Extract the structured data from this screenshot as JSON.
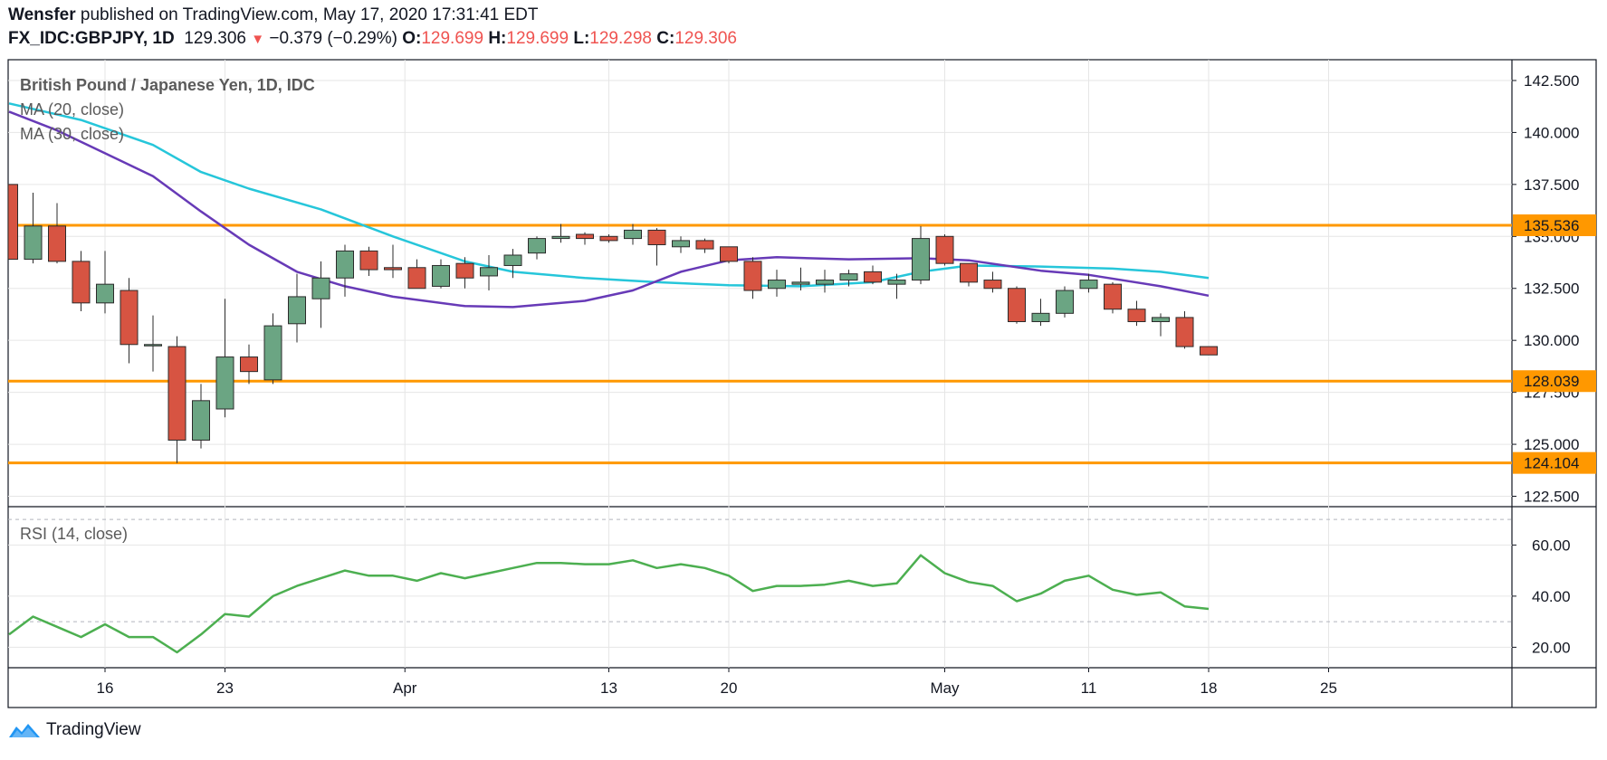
{
  "header": {
    "publisher": "Wensfer",
    "published_text": "published on TradingView.com, May 17, 2020 17:31:41 EDT",
    "symbol": "FX_IDC:GBPJPY, 1D",
    "last": "129.306",
    "change_arrow": "▼",
    "change": "−0.379 (−0.29%)",
    "o_label": "O:",
    "o": "129.699",
    "h_label": "H:",
    "h": "129.699",
    "l_label": "L:",
    "l": "129.298",
    "c_label": "C:",
    "c": "129.306"
  },
  "footer": {
    "brand": "TradingView"
  },
  "chart_data": {
    "type": "candlestick",
    "title": "British Pound / Japanese Yen, 1D, IDC",
    "legend": [
      "MA (20, close)",
      "MA (30, close)"
    ],
    "price_axis": {
      "ticks": [
        "142.500",
        "140.000",
        "137.500",
        "135.000",
        "132.500",
        "130.000",
        "127.500",
        "125.000",
        "122.500"
      ],
      "ylim": [
        122.0,
        143.5
      ]
    },
    "horizontal_levels": [
      "135.536",
      "128.039",
      "124.104"
    ],
    "x_ticks": [
      {
        "label": "16",
        "index": 4
      },
      {
        "label": "23",
        "index": 9
      },
      {
        "label": "Apr",
        "index": 16.5
      },
      {
        "label": "13",
        "index": 25
      },
      {
        "label": "20",
        "index": 30
      },
      {
        "label": "May",
        "index": 39
      },
      {
        "label": "11",
        "index": 45
      },
      {
        "label": "18",
        "index": 50
      },
      {
        "label": "25",
        "index": 55
      }
    ],
    "candles": [
      {
        "o": 137.5,
        "h": 137.5,
        "l": 133.9,
        "c": 133.9
      },
      {
        "o": 133.9,
        "h": 137.1,
        "l": 133.7,
        "c": 135.5
      },
      {
        "o": 135.5,
        "h": 136.6,
        "l": 133.7,
        "c": 133.8
      },
      {
        "o": 133.8,
        "h": 134.3,
        "l": 131.4,
        "c": 131.8
      },
      {
        "o": 131.8,
        "h": 134.3,
        "l": 131.3,
        "c": 132.7
      },
      {
        "o": 132.4,
        "h": 133.0,
        "l": 128.9,
        "c": 129.8
      },
      {
        "o": 129.8,
        "h": 131.2,
        "l": 128.5,
        "c": 129.8
      },
      {
        "o": 129.7,
        "h": 130.2,
        "l": 124.1,
        "c": 125.2
      },
      {
        "o": 125.2,
        "h": 127.9,
        "l": 124.8,
        "c": 127.1
      },
      {
        "o": 126.7,
        "h": 132.0,
        "l": 126.3,
        "c": 129.2
      },
      {
        "o": 129.2,
        "h": 129.8,
        "l": 127.9,
        "c": 128.5
      },
      {
        "o": 128.1,
        "h": 131.3,
        "l": 127.9,
        "c": 130.7
      },
      {
        "o": 130.8,
        "h": 133.2,
        "l": 129.9,
        "c": 132.1
      },
      {
        "o": 132.0,
        "h": 133.8,
        "l": 130.6,
        "c": 133.0
      },
      {
        "o": 133.0,
        "h": 134.6,
        "l": 132.1,
        "c": 134.3
      },
      {
        "o": 134.3,
        "h": 134.5,
        "l": 133.1,
        "c": 133.4
      },
      {
        "o": 133.5,
        "h": 134.6,
        "l": 133.0,
        "c": 133.4
      },
      {
        "o": 133.5,
        "h": 133.9,
        "l": 132.5,
        "c": 132.5
      },
      {
        "o": 132.6,
        "h": 133.9,
        "l": 132.5,
        "c": 133.6
      },
      {
        "o": 133.7,
        "h": 134.0,
        "l": 132.5,
        "c": 133.0
      },
      {
        "o": 133.1,
        "h": 134.1,
        "l": 132.4,
        "c": 133.5
      },
      {
        "o": 133.6,
        "h": 134.4,
        "l": 133.0,
        "c": 134.1
      },
      {
        "o": 134.2,
        "h": 135.0,
        "l": 133.9,
        "c": 134.9
      },
      {
        "o": 134.9,
        "h": 135.6,
        "l": 134.7,
        "c": 135.0
      },
      {
        "o": 135.1,
        "h": 135.2,
        "l": 134.6,
        "c": 134.9
      },
      {
        "o": 135.0,
        "h": 135.1,
        "l": 134.7,
        "c": 134.8
      },
      {
        "o": 134.9,
        "h": 135.6,
        "l": 134.6,
        "c": 135.3
      },
      {
        "o": 135.3,
        "h": 135.4,
        "l": 133.6,
        "c": 134.6
      },
      {
        "o": 134.5,
        "h": 135.0,
        "l": 134.2,
        "c": 134.8
      },
      {
        "o": 134.8,
        "h": 134.9,
        "l": 134.2,
        "c": 134.4
      },
      {
        "o": 134.5,
        "h": 134.5,
        "l": 133.7,
        "c": 133.8
      },
      {
        "o": 133.8,
        "h": 134.0,
        "l": 132.0,
        "c": 132.4
      },
      {
        "o": 132.5,
        "h": 133.4,
        "l": 132.1,
        "c": 132.9
      },
      {
        "o": 132.7,
        "h": 133.5,
        "l": 132.4,
        "c": 132.8
      },
      {
        "o": 132.7,
        "h": 133.4,
        "l": 132.3,
        "c": 132.9
      },
      {
        "o": 132.9,
        "h": 133.4,
        "l": 132.6,
        "c": 133.2
      },
      {
        "o": 133.3,
        "h": 133.6,
        "l": 132.7,
        "c": 132.8
      },
      {
        "o": 132.7,
        "h": 133.2,
        "l": 132.0,
        "c": 132.9
      },
      {
        "o": 132.9,
        "h": 135.5,
        "l": 132.7,
        "c": 134.9
      },
      {
        "o": 135.0,
        "h": 135.1,
        "l": 133.6,
        "c": 133.7
      },
      {
        "o": 133.7,
        "h": 133.7,
        "l": 132.6,
        "c": 132.8
      },
      {
        "o": 132.9,
        "h": 133.3,
        "l": 132.3,
        "c": 132.5
      },
      {
        "o": 132.5,
        "h": 132.6,
        "l": 130.8,
        "c": 130.9
      },
      {
        "o": 130.9,
        "h": 132.0,
        "l": 130.7,
        "c": 131.3
      },
      {
        "o": 131.3,
        "h": 132.6,
        "l": 131.1,
        "c": 132.4
      },
      {
        "o": 132.5,
        "h": 133.2,
        "l": 132.3,
        "c": 132.9
      },
      {
        "o": 132.7,
        "h": 132.8,
        "l": 131.3,
        "c": 131.5
      },
      {
        "o": 131.5,
        "h": 131.9,
        "l": 130.7,
        "c": 130.9
      },
      {
        "o": 130.9,
        "h": 131.3,
        "l": 130.2,
        "c": 131.1
      },
      {
        "o": 131.1,
        "h": 131.4,
        "l": 129.6,
        "c": 129.7
      },
      {
        "o": 129.7,
        "h": 129.7,
        "l": 129.3,
        "c": 129.3
      }
    ],
    "ma20": [
      {
        "i": 0,
        "v": 141.0
      },
      {
        "i": 2,
        "v": 140.1
      },
      {
        "i": 4,
        "v": 139.0
      },
      {
        "i": 6,
        "v": 137.9
      },
      {
        "i": 8,
        "v": 136.2
      },
      {
        "i": 10,
        "v": 134.6
      },
      {
        "i": 12,
        "v": 133.3
      },
      {
        "i": 14,
        "v": 132.6
      },
      {
        "i": 16,
        "v": 132.1
      },
      {
        "i": 19,
        "v": 131.65
      },
      {
        "i": 21,
        "v": 131.6
      },
      {
        "i": 24,
        "v": 131.9
      },
      {
        "i": 26,
        "v": 132.4
      },
      {
        "i": 28,
        "v": 133.3
      },
      {
        "i": 30,
        "v": 133.85
      },
      {
        "i": 32,
        "v": 134.0
      },
      {
        "i": 35,
        "v": 133.9
      },
      {
        "i": 38,
        "v": 133.95
      },
      {
        "i": 40,
        "v": 133.85
      },
      {
        "i": 43,
        "v": 133.35
      },
      {
        "i": 45,
        "v": 133.15
      },
      {
        "i": 48,
        "v": 132.6
      },
      {
        "i": 50,
        "v": 132.15
      }
    ],
    "ma30": [
      {
        "i": 0,
        "v": 141.4
      },
      {
        "i": 3,
        "v": 140.6
      },
      {
        "i": 6,
        "v": 139.4
      },
      {
        "i": 8,
        "v": 138.1
      },
      {
        "i": 10,
        "v": 137.3
      },
      {
        "i": 13,
        "v": 136.3
      },
      {
        "i": 16,
        "v": 135.0
      },
      {
        "i": 19,
        "v": 133.8
      },
      {
        "i": 21,
        "v": 133.3
      },
      {
        "i": 24,
        "v": 133.0
      },
      {
        "i": 27,
        "v": 132.8
      },
      {
        "i": 30,
        "v": 132.65
      },
      {
        "i": 33,
        "v": 132.6
      },
      {
        "i": 36,
        "v": 132.8
      },
      {
        "i": 38,
        "v": 133.3
      },
      {
        "i": 40,
        "v": 133.6
      },
      {
        "i": 43,
        "v": 133.55
      },
      {
        "i": 46,
        "v": 133.45
      },
      {
        "i": 48,
        "v": 133.3
      },
      {
        "i": 50,
        "v": 133.0
      }
    ],
    "rsi": {
      "label": "RSI (14, close)",
      "ticks": [
        "60.00",
        "40.00",
        "20.00"
      ],
      "ylim": [
        12,
        75
      ],
      "bands": [
        70,
        30
      ],
      "values": [
        25,
        32,
        28,
        24,
        29,
        24,
        24,
        18,
        25,
        33,
        32,
        40,
        44,
        47,
        50,
        48,
        48,
        46,
        49,
        47,
        49,
        51,
        53,
        53,
        52.5,
        52.5,
        54,
        51,
        52.5,
        51,
        48,
        42,
        44,
        44,
        44.5,
        46,
        44,
        45,
        56,
        49,
        45.5,
        44,
        38,
        41,
        46,
        48,
        42.5,
        40.5,
        41.5,
        36,
        35
      ]
    }
  }
}
